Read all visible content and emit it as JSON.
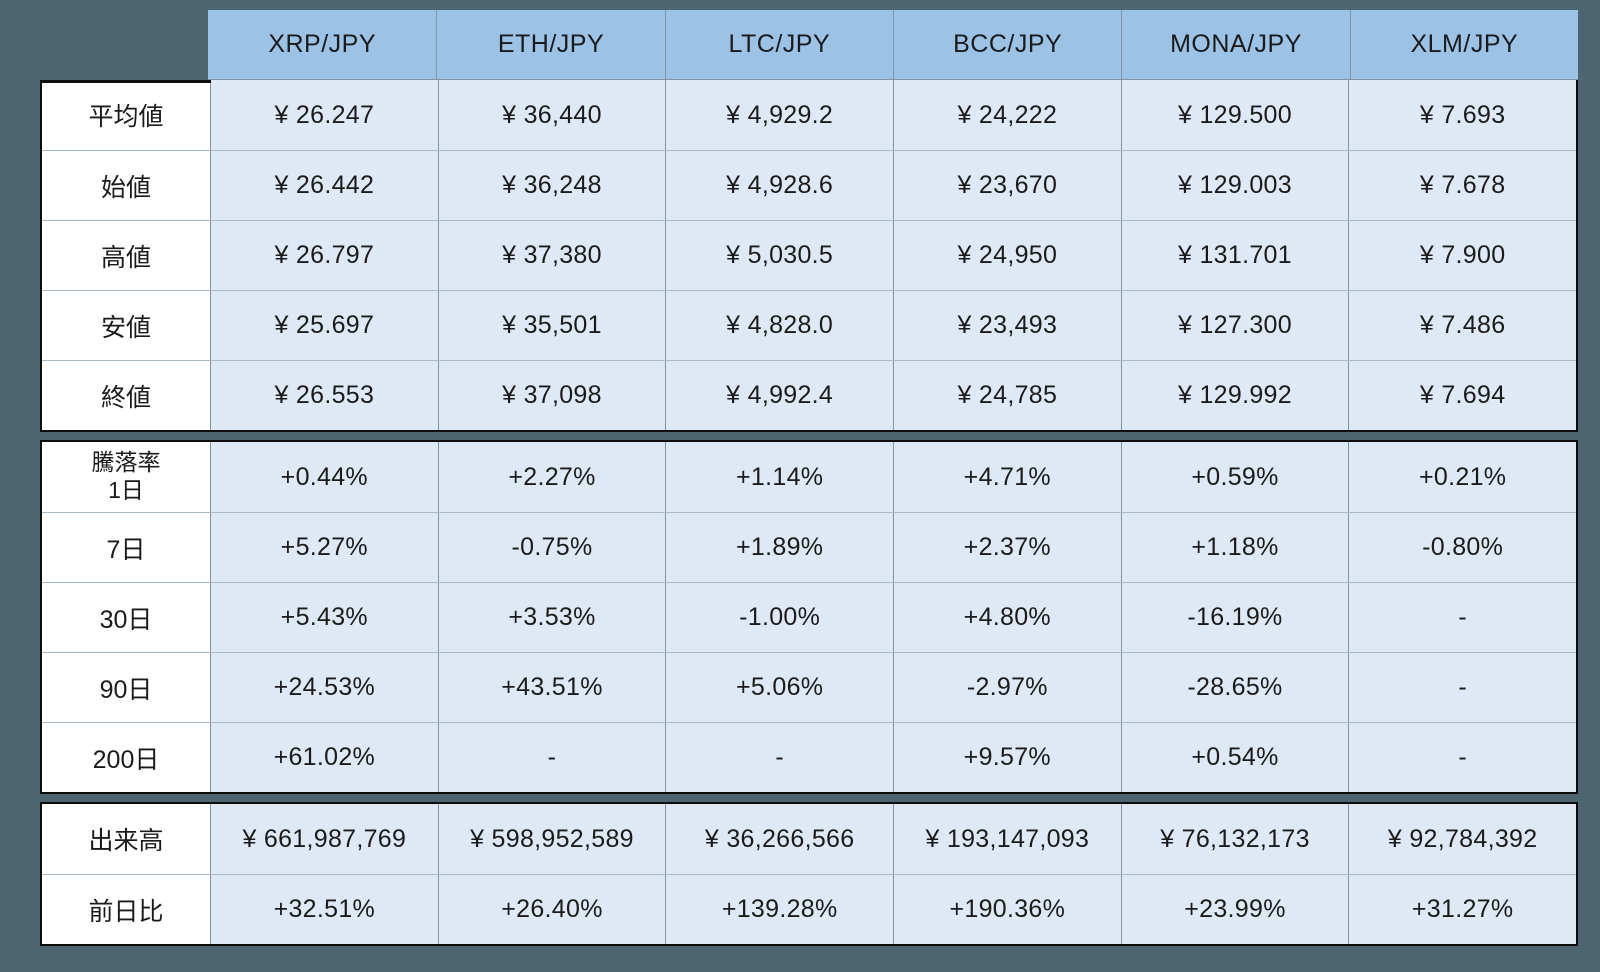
{
  "colors": {
    "page_background": "#4C6570",
    "header_background": "#9CC2E6",
    "cell_background": "#DEE9F5",
    "label_background": "#FFFFFF",
    "section_border": "#0D0D0D",
    "text": "#1B1B1B"
  },
  "chart_data": {
    "type": "table",
    "title": "",
    "column_headers": [
      "XRP/JPY",
      "ETH/JPY",
      "LTC/JPY",
      "BCC/JPY",
      "MONA/JPY",
      "XLM/JPY"
    ],
    "sections": [
      {
        "name": "prices",
        "rows": [
          {
            "label": "平均値",
            "values": [
              "¥ 26.247",
              "¥ 36,440",
              "¥ 4,929.2",
              "¥ 24,222",
              "¥ 129.500",
              "¥ 7.693"
            ]
          },
          {
            "label": "始値",
            "values": [
              "¥ 26.442",
              "¥ 36,248",
              "¥ 4,928.6",
              "¥ 23,670",
              "¥ 129.003",
              "¥ 7.678"
            ]
          },
          {
            "label": "高値",
            "values": [
              "¥ 26.797",
              "¥ 37,380",
              "¥ 5,030.5",
              "¥ 24,950",
              "¥ 131.701",
              "¥ 7.900"
            ]
          },
          {
            "label": "安値",
            "values": [
              "¥ 25.697",
              "¥ 35,501",
              "¥ 4,828.0",
              "¥ 23,493",
              "¥ 127.300",
              "¥ 7.486"
            ]
          },
          {
            "label": "終値",
            "values": [
              "¥ 26.553",
              "¥ 37,098",
              "¥ 4,992.4",
              "¥ 24,785",
              "¥ 129.992",
              "¥ 7.694"
            ]
          }
        ]
      },
      {
        "name": "change-rates",
        "rows": [
          {
            "label": "騰落率",
            "label_line2": "1日",
            "values": [
              "+0.44%",
              "+2.27%",
              "+1.14%",
              "+4.71%",
              "+0.59%",
              "+0.21%"
            ]
          },
          {
            "label": "7日",
            "values": [
              "+5.27%",
              "-0.75%",
              "+1.89%",
              "+2.37%",
              "+1.18%",
              "-0.80%"
            ]
          },
          {
            "label": "30日",
            "values": [
              "+5.43%",
              "+3.53%",
              "-1.00%",
              "+4.80%",
              "-16.19%",
              "-"
            ]
          },
          {
            "label": "90日",
            "values": [
              "+24.53%",
              "+43.51%",
              "+5.06%",
              "-2.97%",
              "-28.65%",
              "-"
            ]
          },
          {
            "label": "200日",
            "values": [
              "+61.02%",
              "-",
              "-",
              "+9.57%",
              "+0.54%",
              "-"
            ]
          }
        ]
      },
      {
        "name": "volume",
        "rows": [
          {
            "label": "出来高",
            "values": [
              "¥ 661,987,769",
              "¥ 598,952,589",
              "¥ 36,266,566",
              "¥ 193,147,093",
              "¥ 76,132,173",
              "¥ 92,784,392"
            ]
          },
          {
            "label": "前日比",
            "values": [
              "+32.51%",
              "+26.40%",
              "+139.28%",
              "+190.36%",
              "+23.99%",
              "+31.27%"
            ]
          }
        ]
      }
    ]
  }
}
